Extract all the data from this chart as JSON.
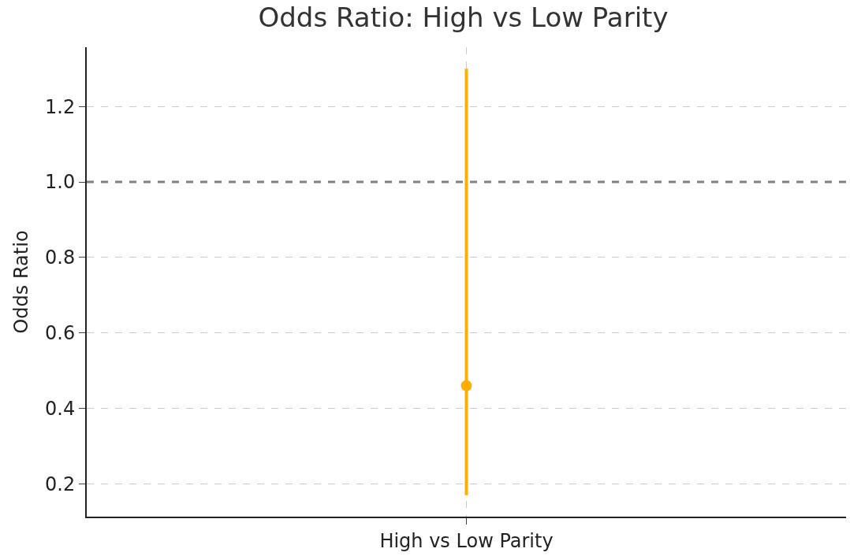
{
  "chart_data": {
    "type": "scatter",
    "title": "Odds Ratio: High vs Low Parity",
    "ylabel": "Odds Ratio",
    "categories": [
      "High vs Low Parity"
    ],
    "series": [
      {
        "color": "#ffae00",
        "values": [
          0.46
        ],
        "errors": [
          [
            0.17,
            1.3
          ]
        ]
      }
    ],
    "ylim": [
      0.113,
      1.357
    ],
    "yticks": [
      0.2,
      0.4,
      0.6,
      0.8,
      {
        "value": 1,
        "label": "1.0"
      },
      1.2
    ],
    "ref_lines": [
      {
        "axis": "y",
        "value": 1.0,
        "color": "#808080",
        "line_style": "dashed"
      }
    ],
    "grid": true,
    "marker": "circle",
    "legend": false
  }
}
